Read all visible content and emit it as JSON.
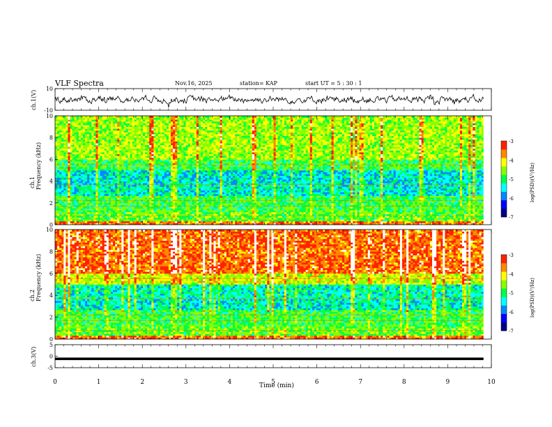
{
  "header": {
    "title": "VLF Spectra",
    "date": "Nov.16, 2025",
    "station": "station= KAP",
    "start_ut": "start  UT =   5 : 30 : 1"
  },
  "colors": {
    "spectrogram_scale": [
      "#000088",
      "#0000ff",
      "#0088ff",
      "#00ffff",
      "#00ff44",
      "#88ff00",
      "#ffff00",
      "#ff8800",
      "#ff2200",
      "#ffffff"
    ],
    "trace": "#000000"
  },
  "chart_data": [
    {
      "type": "line",
      "name": "ch1-waveform",
      "ylabel": "ch.1(V)",
      "ylim": [
        -10,
        10
      ],
      "yticks": [
        "10",
        "-10"
      ],
      "xlim": [
        0,
        10
      ],
      "note": "noisy waveform roughly within +/-5 V over 0–9.8 min"
    },
    {
      "type": "heatmap",
      "name": "ch1-spectrogram",
      "ylabel": "ch.1\nFrequency (kHz)",
      "ylim": [
        0,
        10
      ],
      "yticks": [
        "0",
        "2",
        "4",
        "6",
        "8",
        "10"
      ],
      "xlim": [
        0,
        10
      ],
      "colorbar": {
        "label": "log(PSD)(V²/Hz)",
        "range": [
          -7,
          -3
        ],
        "ticks": [
          "-3",
          "-4",
          "-5",
          "-6",
          "-7"
        ]
      }
    },
    {
      "type": "heatmap",
      "name": "ch2-spectrogram",
      "ylabel": "ch.2\nFrequency (kHz)",
      "ylim": [
        0,
        10
      ],
      "yticks": [
        "0",
        "2",
        "4",
        "6",
        "8",
        "10"
      ],
      "xlim": [
        0,
        10
      ],
      "colorbar": {
        "label": "log(PSD)(V²/Hz)",
        "range": [
          -7,
          -3
        ],
        "ticks": [
          "-3",
          "-4",
          "-5",
          "-6",
          "-7"
        ]
      }
    },
    {
      "type": "line",
      "name": "ch3-signal",
      "ylabel": "ch.3(V)",
      "ylim": [
        -5,
        5
      ],
      "yticks": [
        "5",
        "0",
        "-5"
      ],
      "xlim": [
        0,
        10
      ],
      "note": "thick constant band near -1 V"
    }
  ],
  "x_axis": {
    "label": "Time (min)",
    "ticks": [
      "0",
      "1",
      "2",
      "3",
      "4",
      "5",
      "6",
      "7",
      "8",
      "9",
      "10"
    ]
  },
  "ch1_label": "ch.1(V)",
  "ch3_label": "ch.3(V)",
  "spec1_label": "ch.1",
  "spec2_label": "ch.2",
  "freq_label": "Frequency (kHz)",
  "cbar_label": "log(PSD)(V²/Hz)"
}
